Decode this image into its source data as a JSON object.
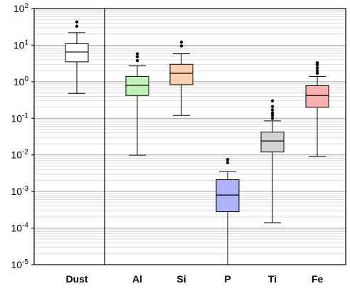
{
  "chart_data": {
    "type": "box",
    "y_scale": "log",
    "ylim": [
      1e-05,
      100
    ],
    "y_ticks": [
      {
        "base": "10",
        "exp": "2"
      },
      {
        "base": "10",
        "exp": "1"
      },
      {
        "base": "10",
        "exp": "0"
      },
      {
        "base": "10",
        "exp": "-1"
      },
      {
        "base": "10",
        "exp": "-2"
      },
      {
        "base": "10",
        "exp": "-3"
      },
      {
        "base": "10",
        "exp": "-4"
      },
      {
        "base": "10",
        "exp": "-5"
      }
    ],
    "grid": true,
    "categories": [
      "Dust",
      "Al",
      "Si",
      "P",
      "Ti",
      "Fe"
    ],
    "boxes": [
      {
        "category": "Dust",
        "whisker_low": 0.48,
        "q1": 3.5,
        "median": 6.5,
        "q3": 11,
        "whisker_high": 22,
        "outliers": [
          33,
          43
        ],
        "color": "#ffffff"
      },
      {
        "category": "Al",
        "whisker_low": 0.0098,
        "q1": 0.42,
        "median": 0.8,
        "q3": 1.4,
        "whisker_high": 2.7,
        "outliers": [
          3.8,
          4.8,
          5.8
        ],
        "color": "#bff2b8"
      },
      {
        "category": "Si",
        "whisker_low": 0.12,
        "q1": 0.83,
        "median": 1.7,
        "q3": 3.0,
        "whisker_high": 5.8,
        "outliers": [
          9.5,
          12
        ],
        "color": "#fcd0b0"
      },
      {
        "category": "P",
        "whisker_low": 1e-05,
        "q1": 0.00028,
        "median": 0.0008,
        "q3": 0.0021,
        "whisker_high": 0.0035,
        "outliers": [
          0.0062,
          0.0075
        ],
        "color": "#aeb2f6"
      },
      {
        "category": "Ti",
        "whisker_low": 0.00014,
        "q1": 0.012,
        "median": 0.024,
        "q3": 0.042,
        "whisker_high": 0.085,
        "outliers": [
          0.1,
          0.12,
          0.14,
          0.17,
          0.21,
          0.3
        ],
        "color": "#d3d3d3"
      },
      {
        "category": "Fe",
        "whisker_low": 0.0092,
        "q1": 0.2,
        "median": 0.42,
        "q3": 0.78,
        "whisker_high": 1.4,
        "outliers": [
          1.7,
          2.0,
          2.4,
          2.9,
          3.3
        ],
        "color": "#fab0b0"
      }
    ],
    "separator_after": "Dust"
  }
}
